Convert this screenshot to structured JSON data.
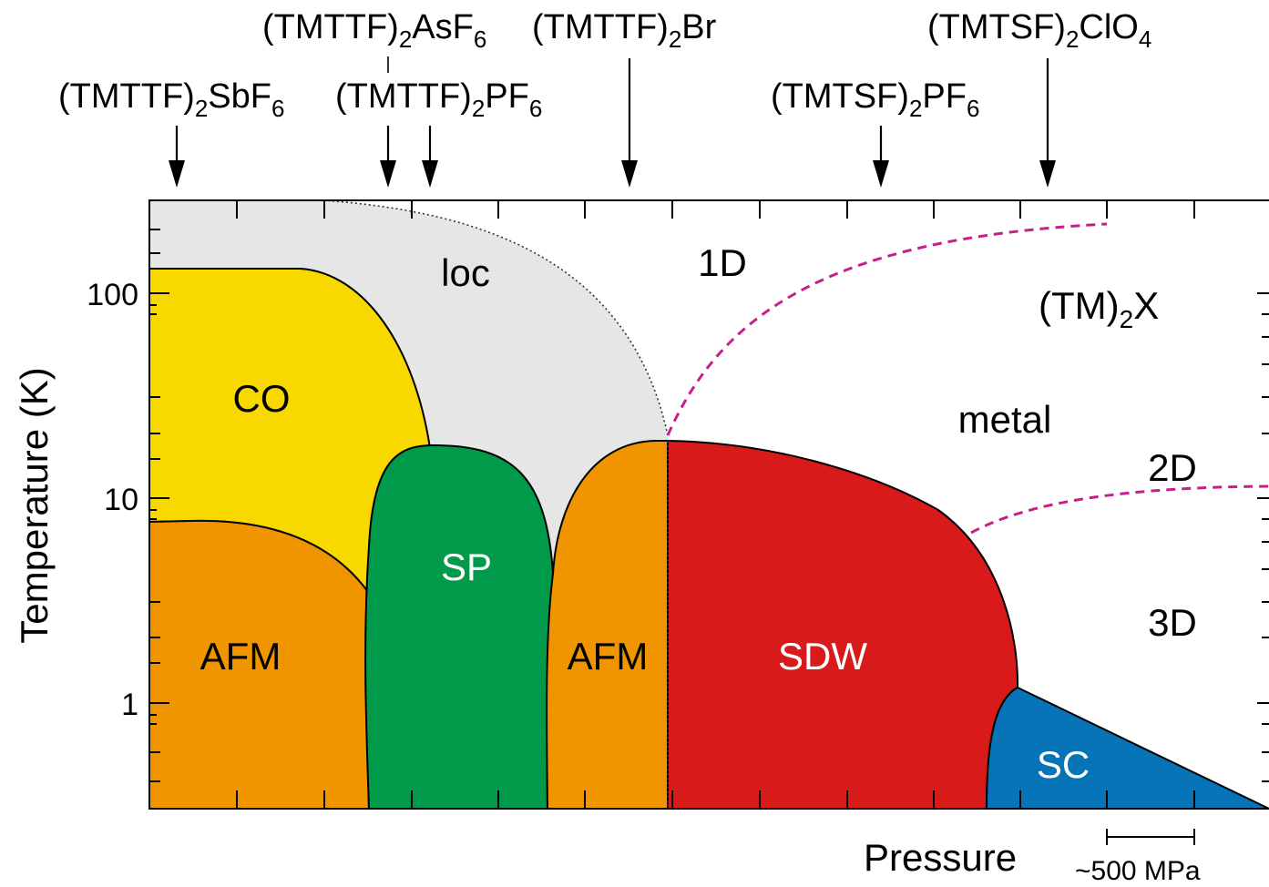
{
  "compounds": [
    {
      "name": "(TMTTF)",
      "sub": "2",
      "anion": "SbF",
      "anion_sub": "6"
    },
    {
      "name": "(TMTTF)",
      "sub": "2",
      "anion": "AsF",
      "anion_sub": "6"
    },
    {
      "name": "(TMTTF)",
      "sub": "2",
      "anion": "PF",
      "anion_sub": "6"
    },
    {
      "name": "(TMTTF)",
      "sub": "2",
      "anion": "Br",
      "anion_sub": ""
    },
    {
      "name": "(TMTSF)",
      "sub": "2",
      "anion": "PF",
      "anion_sub": "6"
    },
    {
      "name": "(TMTSF)",
      "sub": "2",
      "anion": "ClO",
      "anion_sub": "4"
    }
  ],
  "axes": {
    "y_label": "Temperature (K)",
    "y_ticks": [
      "1",
      "10",
      "100"
    ],
    "y_scale": "log",
    "x_label": "Pressure",
    "scale_bar": "~500 MPa"
  },
  "phases": {
    "loc": "loc",
    "co": "CO",
    "afm_left": "AFM",
    "sp": "SP",
    "afm_right": "AFM",
    "sdw": "SDW",
    "sc": "SC"
  },
  "regions": {
    "one_d": "1D",
    "two_d": "2D",
    "three_d": "3D",
    "metal": "metal"
  },
  "formula": {
    "main": "(TM)",
    "sub": "2",
    "tail": "X"
  },
  "colors": {
    "loc": "#e6e6e6",
    "co": "#f7d900",
    "afm": "#f09400",
    "sp": "#009a4a",
    "sdw": "#d91a1a",
    "sc": "#0874b8",
    "crossover": "#c81e8c"
  }
}
